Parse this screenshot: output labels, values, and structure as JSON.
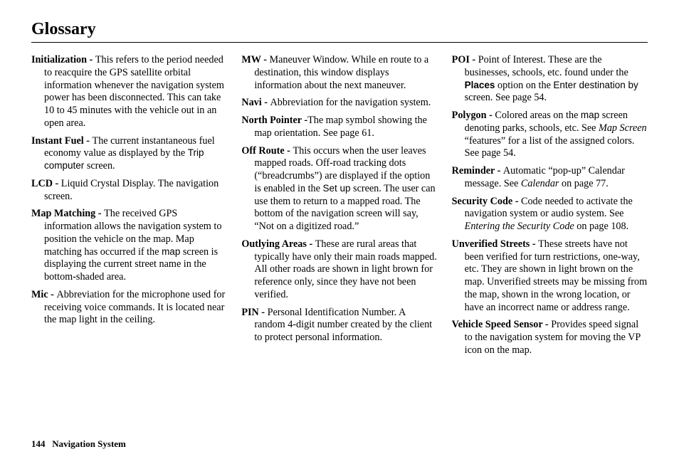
{
  "title": "Glossary",
  "footer": {
    "page": "144",
    "section": "Navigation System"
  },
  "col1": {
    "e1": {
      "term": "Initialization - ",
      "def": "This refers to the period needed to reacquire the GPS satellite orbital information whenever the navigation system power has been disconnected. This can take 10 to 45 minutes with the vehicle out in an open area."
    },
    "e2": {
      "term": "Instant Fuel - ",
      "a": "The current instantaneous fuel economy value as displayed by the ",
      "ui": "Trip computer",
      "b": " screen."
    },
    "e3": {
      "term": "LCD - ",
      "def": "Liquid Crystal Display. The navigation screen."
    },
    "e4": {
      "term": "Map Matching - ",
      "a": "The received GPS information allows the navigation system to position the vehicle on the map. Map matching has occurred if the ",
      "ui": "map",
      "b": " screen is displaying the current street name in the bottom-shaded area."
    },
    "e5": {
      "term": "Mic - ",
      "def": "Abbreviation for the microphone used for receiving voice commands. It is located near the map light in the ceiling."
    }
  },
  "col2": {
    "e1": {
      "term": "MW - ",
      "def": "Maneuver Window. While en route to a destination, this window displays information about the next maneuver."
    },
    "e2": {
      "term": "Navi - ",
      "def": "Abbreviation for the navigation system."
    },
    "e3": {
      "term": "North Pointer -",
      "def": "The map symbol showing the map orientation. See page 61."
    },
    "e4": {
      "term": "Off Route - ",
      "a": "This occurs when the user leaves mapped roads. Off-road tracking dots (“breadcrumbs”) are displayed if the option is enabled in the ",
      "ui": "Set up",
      "b": " screen. The user can use them to return to a mapped road. The bottom of the navigation screen will say, “Not on a digitized road.”"
    },
    "e5": {
      "term": "Outlying Areas - ",
      "def": "These are rural areas that typically have only their main roads mapped. All other roads are shown in light brown for reference only, since they have not been verified."
    },
    "e6": {
      "term": "PIN - ",
      "def": "Personal Identification Number. A random 4-digit number created by the client to protect personal information."
    }
  },
  "col3": {
    "e1": {
      "term": "POI - ",
      "a": "Point of Interest. These are the businesses, schools, etc. found under the ",
      "uibold": "Places",
      "b": " option on the ",
      "ui": "Enter destination by",
      "c": " screen. See page 54."
    },
    "e2": {
      "term": "Polygon - ",
      "a": "Colored areas on the ",
      "ui": "map",
      "b": " screen denoting parks, schools, etc. See ",
      "ital": "Map Screen",
      "c": " “features” for a list of the assigned colors. See page 54."
    },
    "e3": {
      "term": "Reminder - ",
      "a": "Automatic “pop-up” Calendar message. See ",
      "ital": "Calendar",
      "b": " on page 77."
    },
    "e4": {
      "term": "Security Code - ",
      "a": "Code needed to activate the navigation system or audio system. See ",
      "ital": "Entering the Security Code",
      "b": " on page 108."
    },
    "e5": {
      "term": "Unverified Streets - ",
      "def": "These streets have not been verified for turn restrictions, one-way, etc. They are shown in light brown on the map. Unverified streets may be missing from the map, shown in the wrong location, or have an incorrect name or address range."
    },
    "e6": {
      "term": "Vehicle Speed Sensor - ",
      "def": "Provides speed signal to the navigation system for moving the VP icon on the map."
    }
  }
}
